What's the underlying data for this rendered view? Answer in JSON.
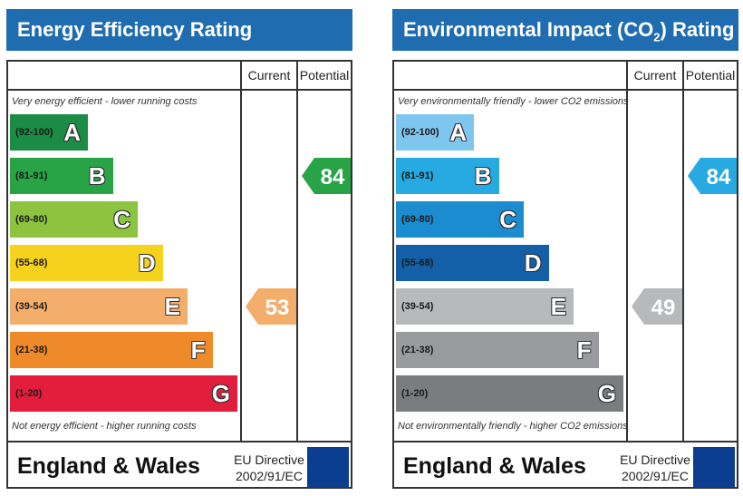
{
  "chart_data": [
    {
      "type": "bar",
      "title": "Energy Efficiency Rating",
      "columns": [
        "Current",
        "Potential"
      ],
      "top_note": "Very energy efficient - lower running costs",
      "bottom_note": "Not energy efficient - higher running costs",
      "bands": [
        {
          "range": "(92-100)",
          "letter": "A",
          "color": "#1a8c43"
        },
        {
          "range": "(81-91)",
          "letter": "B",
          "color": "#28a447"
        },
        {
          "range": "(69-80)",
          "letter": "C",
          "color": "#8dc43f"
        },
        {
          "range": "(55-68)",
          "letter": "D",
          "color": "#f5d21b"
        },
        {
          "range": "(39-54)",
          "letter": "E",
          "color": "#f4ae6c"
        },
        {
          "range": "(21-38)",
          "letter": "F",
          "color": "#ee8a2a"
        },
        {
          "range": "(1-20)",
          "letter": "G",
          "color": "#e31d3c"
        }
      ],
      "current": {
        "value": "53",
        "band": "E",
        "color": "#f4ae6c"
      },
      "potential": {
        "value": "84",
        "band": "B",
        "color": "#28a447"
      },
      "footer": "England & Wales",
      "directive": [
        "EU Directive",
        "2002/91/EC"
      ]
    },
    {
      "type": "bar",
      "title": "Environmental Impact (CO2) Rating",
      "title_parts": [
        "Environmental Impact (CO",
        "2",
        ") Rating"
      ],
      "columns": [
        "Current",
        "Potential"
      ],
      "top_note": "Very environmentally friendly - lower CO2 emissions",
      "bottom_note": "Not environmentally friendly - higher CO2 emissions",
      "bands": [
        {
          "range": "(92-100)",
          "letter": "A",
          "color": "#7fc6ef"
        },
        {
          "range": "(81-91)",
          "letter": "B",
          "color": "#27aae1"
        },
        {
          "range": "(69-80)",
          "letter": "C",
          "color": "#1b8ccf"
        },
        {
          "range": "(55-68)",
          "letter": "D",
          "color": "#135fa8"
        },
        {
          "range": "(39-54)",
          "letter": "E",
          "color": "#b8b9bb"
        },
        {
          "range": "(21-38)",
          "letter": "F",
          "color": "#9a9b9d"
        },
        {
          "range": "(1-20)",
          "letter": "G",
          "color": "#7b7c7e"
        }
      ],
      "current": {
        "value": "49",
        "band": "E",
        "color": "#b8b9bb"
      },
      "potential": {
        "value": "84",
        "band": "B",
        "color": "#27aae1"
      },
      "footer": "England & Wales",
      "directive": [
        "EU Directive",
        "2002/91/EC"
      ]
    }
  ]
}
